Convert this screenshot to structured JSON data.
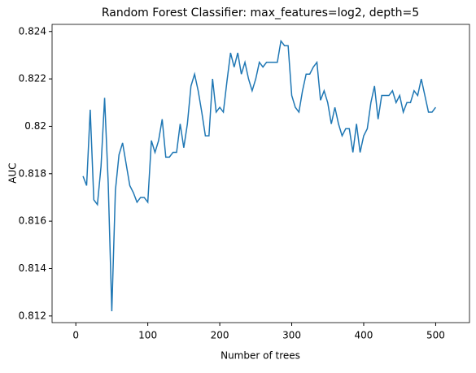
{
  "chart_data": {
    "type": "line",
    "title": "Random Forest Classifier: max_features=log2, depth=5",
    "xlabel": "Number of trees",
    "ylabel": "AUC",
    "x": [
      10,
      15,
      20,
      25,
      30,
      35,
      40,
      45,
      50,
      55,
      60,
      65,
      70,
      75,
      80,
      85,
      90,
      95,
      100,
      105,
      110,
      115,
      120,
      125,
      130,
      135,
      140,
      145,
      150,
      155,
      160,
      165,
      170,
      175,
      180,
      185,
      190,
      195,
      200,
      205,
      210,
      215,
      220,
      225,
      230,
      235,
      240,
      245,
      250,
      255,
      260,
      265,
      270,
      275,
      280,
      285,
      290,
      295,
      300,
      305,
      310,
      315,
      320,
      325,
      330,
      335,
      340,
      345,
      350,
      355,
      360,
      365,
      370,
      375,
      380,
      385,
      390,
      395,
      400,
      405,
      410,
      415,
      420,
      425,
      430,
      435,
      440,
      445,
      450,
      455,
      460,
      465,
      470,
      475,
      480,
      485,
      490,
      495,
      500
    ],
    "series": [
      {
        "name": "AUC",
        "color": "#1f77b4",
        "values": [
          0.8179,
          0.8175,
          0.8207,
          0.8169,
          0.8167,
          0.8183,
          0.8212,
          0.8176,
          0.8122,
          0.8173,
          0.8188,
          0.8193,
          0.8184,
          0.8175,
          0.8172,
          0.8168,
          0.817,
          0.817,
          0.8168,
          0.8194,
          0.8189,
          0.8194,
          0.8203,
          0.8187,
          0.8187,
          0.8189,
          0.8189,
          0.8201,
          0.8191,
          0.8201,
          0.8217,
          0.8222,
          0.8215,
          0.8206,
          0.8196,
          0.8196,
          0.822,
          0.8206,
          0.8208,
          0.8206,
          0.8219,
          0.8231,
          0.8225,
          0.8231,
          0.8222,
          0.8227,
          0.822,
          0.8215,
          0.822,
          0.8227,
          0.8225,
          0.8227,
          0.8227,
          0.8227,
          0.8227,
          0.8236,
          0.8234,
          0.8234,
          0.8213,
          0.8208,
          0.8206,
          0.8215,
          0.8222,
          0.8222,
          0.8225,
          0.8227,
          0.8211,
          0.8215,
          0.821,
          0.8201,
          0.8208,
          0.8201,
          0.8196,
          0.8199,
          0.8199,
          0.8189,
          0.8201,
          0.8189,
          0.8196,
          0.8199,
          0.821,
          0.8217,
          0.8203,
          0.8213,
          0.8213,
          0.8213,
          0.8215,
          0.821,
          0.8213,
          0.8206,
          0.821,
          0.821,
          0.8215,
          0.8213,
          0.822,
          0.8213,
          0.8206,
          0.8206,
          0.8208
        ]
      }
    ],
    "xlim": [
      -33,
      547
    ],
    "ylim": [
      0.81172,
      0.8243
    ],
    "xticks": [
      0,
      100,
      200,
      300,
      400,
      500
    ],
    "yticks": [
      0.812,
      0.814,
      0.816,
      0.818,
      0.82,
      0.822,
      0.824
    ]
  }
}
